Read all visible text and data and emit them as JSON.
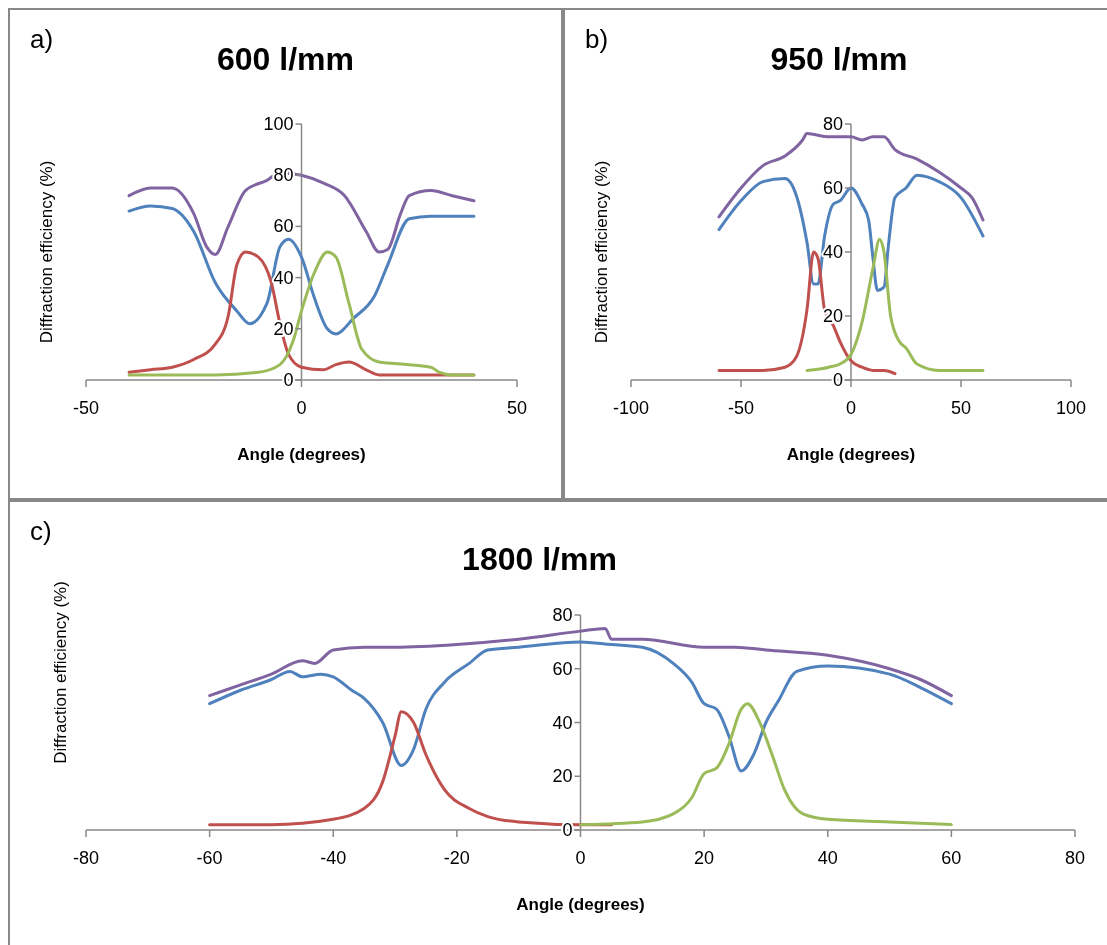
{
  "chart_data": [
    {
      "type": "line",
      "title": "600 l/mm",
      "xlabel": "Angle (degrees)",
      "ylabel": "Diffraction efficiency (%)",
      "annotations": [
        "a)"
      ],
      "xlim": [
        -50,
        50
      ],
      "xticks": [
        -50,
        0,
        50
      ],
      "ylim": [
        0,
        100
      ],
      "yticks": [
        0,
        20,
        40,
        60,
        80,
        100
      ],
      "grid": false,
      "series": [
        {
          "color": "#8064a2",
          "x": [
            -40,
            -35,
            -30,
            -25,
            -22,
            -20,
            -17,
            -13,
            -8,
            -5,
            0,
            5,
            10,
            15,
            18,
            20,
            23,
            25,
            30,
            35,
            40
          ],
          "values": [
            72,
            75,
            75,
            65,
            52,
            49,
            60,
            74,
            78,
            81,
            80,
            77,
            72,
            58,
            50,
            51,
            65,
            72,
            74,
            72,
            70
          ]
        },
        {
          "color": "#4f81bd",
          "x": [
            -40,
            -35,
            -30,
            -25,
            -20,
            -15,
            -12,
            -8,
            -5,
            -3,
            0,
            3,
            6,
            8,
            12,
            17,
            20,
            25,
            30,
            35,
            40
          ],
          "values": [
            66,
            68,
            67,
            58,
            38,
            27,
            22,
            30,
            52,
            55,
            48,
            32,
            20,
            18,
            24,
            33,
            45,
            63,
            64,
            64,
            64
          ]
        },
        {
          "color": "#c0504d",
          "x": [
            -40,
            -35,
            -30,
            -25,
            -20,
            -17,
            -15,
            -13,
            -10,
            -7,
            -5,
            -3,
            0,
            5,
            8,
            11,
            15,
            18,
            25,
            40
          ],
          "values": [
            3,
            4,
            5,
            8,
            14,
            25,
            45,
            50,
            48,
            38,
            22,
            10,
            5,
            4,
            6,
            7,
            4,
            2,
            2,
            2
          ]
        },
        {
          "color": "#9bbb59",
          "x": [
            -40,
            -20,
            -10,
            -5,
            -2,
            0,
            3,
            6,
            8,
            11,
            14,
            18,
            25,
            30,
            32,
            35,
            40
          ],
          "values": [
            2,
            2,
            3,
            6,
            15,
            27,
            42,
            50,
            48,
            30,
            12,
            7,
            6,
            5,
            3,
            2,
            2
          ]
        }
      ]
    },
    {
      "type": "line",
      "title": "950 l/mm",
      "xlabel": "Angle (degrees)",
      "ylabel": "Diffraction efficiency (%)",
      "annotations": [
        "b)"
      ],
      "xlim": [
        -100,
        100
      ],
      "xticks": [
        -100,
        -50,
        0,
        50,
        100
      ],
      "ylim": [
        0,
        80
      ],
      "yticks": [
        0,
        20,
        40,
        60,
        80
      ],
      "grid": false,
      "series": [
        {
          "color": "#8064a2",
          "x": [
            -60,
            -50,
            -40,
            -30,
            -22,
            -20,
            -10,
            0,
            5,
            10,
            15,
            20,
            30,
            40,
            50,
            55,
            60
          ],
          "values": [
            51,
            60,
            67,
            70,
            75,
            77,
            76,
            76,
            75,
            76,
            76,
            72,
            69,
            65,
            60,
            57,
            50
          ]
        },
        {
          "color": "#4f81bd",
          "x": [
            -60,
            -50,
            -40,
            -30,
            -25,
            -20,
            -17,
            -15,
            -12,
            -8,
            -5,
            0,
            5,
            8,
            10,
            12,
            15,
            17,
            20,
            25,
            30,
            40,
            50,
            60
          ],
          "values": [
            47,
            56,
            62,
            63,
            58,
            43,
            30,
            30,
            45,
            55,
            56,
            60,
            55,
            50,
            38,
            28,
            29,
            42,
            57,
            60,
            64,
            62,
            57,
            45
          ]
        },
        {
          "color": "#c0504d",
          "x": [
            -60,
            -40,
            -30,
            -25,
            -20,
            -17,
            -15,
            -12,
            -8,
            -5,
            0,
            5,
            10,
            15,
            20
          ],
          "values": [
            3,
            3,
            4,
            7,
            22,
            40,
            38,
            22,
            17,
            12,
            6,
            4,
            3,
            3,
            2
          ]
        },
        {
          "color": "#9bbb59",
          "x": [
            -20,
            -10,
            -5,
            0,
            5,
            10,
            13,
            15,
            18,
            22,
            25,
            30,
            40,
            50,
            60
          ],
          "values": [
            3,
            4,
            5,
            8,
            18,
            35,
            44,
            40,
            20,
            12,
            10,
            5,
            3,
            3,
            3
          ]
        }
      ]
    },
    {
      "type": "line",
      "title": "1800 l/mm",
      "xlabel": "Angle (degrees)",
      "ylabel": "Diffraction efficiency (%)",
      "annotations": [
        "c)"
      ],
      "xlim": [
        -80,
        80
      ],
      "xticks": [
        -80,
        -60,
        -40,
        -20,
        0,
        20,
        40,
        60,
        80
      ],
      "ylim": [
        0,
        80
      ],
      "yticks": [
        0,
        20,
        40,
        60,
        80
      ],
      "grid": false,
      "series": [
        {
          "color": "#8064a2",
          "x": [
            -60,
            -55,
            -50,
            -45,
            -43,
            -40,
            -35,
            -30,
            -20,
            -10,
            0,
            4,
            5,
            10,
            20,
            25,
            30,
            40,
            50,
            55,
            60
          ],
          "values": [
            50,
            54,
            58,
            63,
            62,
            67,
            68,
            68,
            69,
            71,
            74,
            75,
            71,
            71,
            68,
            68,
            67,
            65,
            60,
            56,
            50
          ]
        },
        {
          "color": "#4f81bd",
          "x": [
            -60,
            -55,
            -50,
            -47,
            -45,
            -42,
            -40,
            -37,
            -35,
            -32,
            -29,
            -27,
            -25,
            -22,
            -18,
            -15,
            -10,
            0,
            5,
            10,
            15,
            18,
            20,
            22,
            24,
            26,
            28,
            30,
            32,
            35,
            40,
            50,
            55,
            60
          ],
          "values": [
            47,
            52,
            56,
            59,
            57,
            58,
            57,
            52,
            49,
            40,
            24,
            30,
            45,
            55,
            62,
            67,
            68,
            70,
            69,
            68,
            62,
            55,
            47,
            45,
            35,
            22,
            28,
            40,
            48,
            59,
            61,
            58,
            53,
            47
          ]
        },
        {
          "color": "#c0504d",
          "x": [
            -60,
            -50,
            -40,
            -35,
            -32,
            -30,
            -29,
            -27,
            -25,
            -22,
            -18,
            -15,
            -10,
            0,
            5
          ],
          "values": [
            2,
            2,
            4,
            8,
            18,
            35,
            44,
            40,
            28,
            15,
            8,
            5,
            3,
            2,
            2
          ]
        },
        {
          "color": "#9bbb59",
          "x": [
            0,
            10,
            15,
            18,
            20,
            22,
            24,
            26,
            27,
            29,
            31,
            33,
            36,
            40,
            50,
            60
          ],
          "values": [
            2,
            3,
            6,
            12,
            21,
            23,
            32,
            45,
            47,
            40,
            28,
            15,
            6,
            4,
            3,
            2
          ]
        }
      ]
    }
  ]
}
